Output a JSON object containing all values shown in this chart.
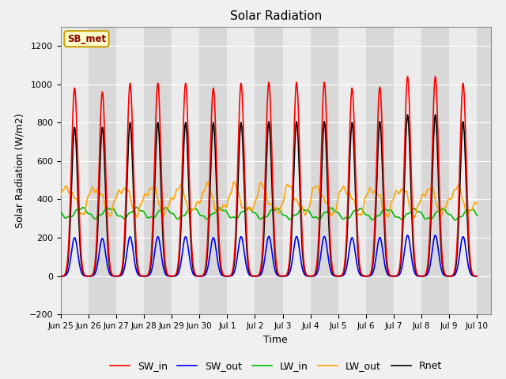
{
  "title": "Solar Radiation",
  "xlabel": "Time",
  "ylabel": "Solar Radiation (W/m2)",
  "ylim": [
    -200,
    1300
  ],
  "yticks": [
    -200,
    0,
    200,
    400,
    600,
    800,
    1000,
    1200
  ],
  "x_tick_labels": [
    "Jun 25",
    "Jun 26",
    "Jun 27",
    "Jun 28",
    "Jun 29",
    "Jun 30",
    "Jul 1",
    "Jul 2",
    "Jul 3",
    "Jul 4",
    "Jul 5",
    "Jul 6",
    "Jul 7",
    "Jul 8",
    "Jul 9",
    "Jul 10"
  ],
  "colors": {
    "SW_in": "#ff0000",
    "SW_out": "#0000ff",
    "LW_in": "#00bb00",
    "LW_out": "#ffa500",
    "Rnet": "#000000"
  },
  "legend_label": "SB_met",
  "fig_facecolor": "#f0f0f0",
  "ax_facecolor": "#e0e0e0",
  "band_light": "#ebebeb",
  "band_dark": "#d8d8d8",
  "grid_color": "#ffffff",
  "linewidth": 1.2
}
